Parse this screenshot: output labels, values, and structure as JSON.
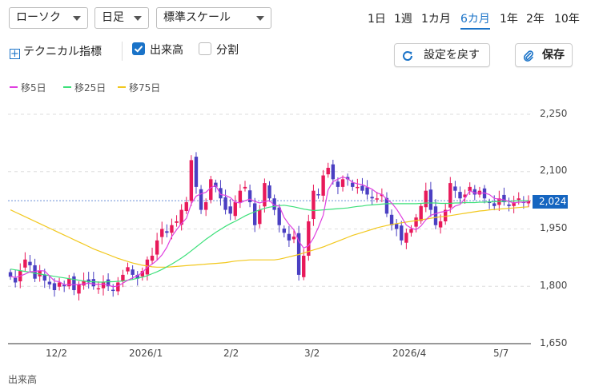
{
  "controls": {
    "chart_type": "ローソク",
    "period_type": "日足",
    "scale": "標準スケール",
    "ranges": [
      "1日",
      "1週",
      "1カ月",
      "6カ月",
      "1年",
      "2年",
      "10年"
    ],
    "active_range": "6カ月",
    "technical": "テクニカル指標",
    "volume_label": "出来高",
    "volume_checked": true,
    "split_label": "分割",
    "split_checked": false,
    "reset_label": "設定を戻す",
    "save_label": "保存"
  },
  "colors": {
    "up": "#e8195a",
    "down": "#4a3fc2",
    "ma5": "#e040e0",
    "ma25": "#3de07a",
    "ma75": "#f2c81e",
    "current": "#1565c0"
  },
  "bottom_label": "出来高",
  "chart_data": {
    "type": "candlestick",
    "y_ticks": [
      "2,250",
      "2,100",
      "1,950",
      "1,800",
      "1,650"
    ],
    "ylim": [
      1650,
      2250
    ],
    "x_ticks": [
      "12/2",
      "2026/1",
      "2/2",
      "3/2",
      "2026/4",
      "5/7"
    ],
    "current_price": "2,024",
    "current_value": 2024,
    "legend": [
      "移5日",
      "移25日",
      "移75日"
    ],
    "closes": [
      1825,
      1810,
      1840,
      1870,
      1855,
      1820,
      1840,
      1815,
      1805,
      1790,
      1810,
      1800,
      1820,
      1790,
      1805,
      1815,
      1810,
      1800,
      1795,
      1812,
      1800,
      1790,
      1810,
      1830,
      1850,
      1830,
      1820,
      1840,
      1870,
      1880,
      1920,
      1950,
      1940,
      1960,
      1970,
      2000,
      2020,
      2130,
      2060,
      2000,
      2020,
      2080,
      2060,
      2030,
      2000,
      1990,
      2020,
      2050,
      2060,
      2020,
      1960,
      2000,
      2070,
      2030,
      2000,
      1960,
      1940,
      1920,
      1930,
      1830,
      1880,
      1970,
      2050,
      2040,
      2090,
      2110,
      2080,
      2060,
      2080,
      2080,
      2060,
      2060,
      2050,
      2040,
      2030,
      2030,
      2040,
      1990,
      1960,
      1950,
      1920,
      1940,
      1950,
      1980,
      2010,
      2050,
      2000,
      1960,
      1970,
      2000,
      2070,
      2050,
      2030,
      2040,
      2060,
      2040,
      2050,
      2030,
      2020,
      2010,
      2030,
      2020,
      2010,
      2020,
      2030,
      2020,
      2024
    ],
    "ma5": [
      1826,
      1823,
      1827,
      1832,
      1838,
      1839,
      1841,
      1840,
      1827,
      1814,
      1812,
      1804,
      1805,
      1804,
      1805,
      1806,
      1808,
      1806,
      1805,
      1806,
      1803,
      1799,
      1801,
      1808,
      1816,
      1822,
      1828,
      1836,
      1850,
      1858,
      1868,
      1882,
      1902,
      1930,
      1948,
      1964,
      1978,
      2016,
      2036,
      2042,
      2046,
      2058,
      2064,
      2040,
      2038,
      2032,
      2020,
      2018,
      2024,
      2028,
      2022,
      2018,
      2022,
      2024,
      2012,
      2010,
      1980,
      1962,
      1948,
      1918,
      1900,
      1906,
      1926,
      1954,
      1986,
      2052,
      2074,
      2080,
      2086,
      2082,
      2072,
      2068,
      2066,
      2060,
      2054,
      2044,
      2040,
      2028,
      2018,
      2002,
      1982,
      1960,
      1952,
      1948,
      1958,
      1974,
      1986,
      1990,
      1994,
      1996,
      2000,
      2010,
      2014,
      2030,
      2050,
      2044,
      2044,
      2044,
      2040,
      2030,
      2028,
      2026,
      2022,
      2018,
      2020,
      2020,
      2021
    ],
    "ma25": [
      1845,
      1843,
      1841,
      1839,
      1837,
      1834,
      1832,
      1830,
      1828,
      1826,
      1824,
      1822,
      1820,
      1818,
      1816,
      1814,
      1812,
      1812,
      1811,
      1811,
      1812,
      1812,
      1813,
      1814,
      1816,
      1818,
      1821,
      1824,
      1828,
      1833,
      1838,
      1844,
      1851,
      1858,
      1866,
      1874,
      1883,
      1893,
      1903,
      1913,
      1923,
      1932,
      1941,
      1949,
      1957,
      1964,
      1970,
      1977,
      1984,
      1990,
      1995,
      2000,
      2004,
      2007,
      2009,
      2011,
      2012,
      2010,
      2008,
      2005,
      2002,
      2000,
      1998,
      1999,
      2000,
      2001,
      2002,
      2003,
      2004,
      2005,
      2007,
      2009,
      2010,
      2012,
      2013,
      2014,
      2015,
      2016,
      2016,
      2016,
      2016,
      2016,
      2016,
      2016,
      2017,
      2018,
      2018,
      2018,
      2017,
      2017,
      2017,
      2018,
      2018,
      2019,
      2019,
      2019,
      2020,
      2020,
      2021,
      2021,
      2022,
      2022,
      2023,
      2023,
      2024,
      2024,
      2024
    ],
    "ma75": [
      2000,
      1994,
      1988,
      1982,
      1976,
      1970,
      1964,
      1958,
      1952,
      1946,
      1940,
      1934,
      1928,
      1922,
      1916,
      1910,
      1904,
      1898,
      1893,
      1888,
      1883,
      1878,
      1873,
      1869,
      1865,
      1861,
      1858,
      1855,
      1853,
      1851,
      1850,
      1850,
      1850,
      1851,
      1852,
      1853,
      1854,
      1855,
      1856,
      1857,
      1858,
      1859,
      1860,
      1861,
      1862,
      1864,
      1866,
      1867,
      1868,
      1869,
      1869,
      1869,
      1869,
      1869,
      1869,
      1871,
      1874,
      1877,
      1880,
      1883,
      1887,
      1891,
      1895,
      1899,
      1903,
      1908,
      1913,
      1918,
      1923,
      1928,
      1933,
      1937,
      1941,
      1945,
      1949,
      1953,
      1956,
      1959,
      1962,
      1964,
      1966,
      1968,
      1970,
      1972,
      1974,
      1976,
      1978,
      1980,
      1982,
      1983,
      1985,
      1987,
      1989,
      1991,
      1993,
      1995,
      1997,
      1998,
      2000,
      2001,
      2002,
      2003,
      2004,
      2005,
      2006,
      2007,
      2008
    ]
  }
}
